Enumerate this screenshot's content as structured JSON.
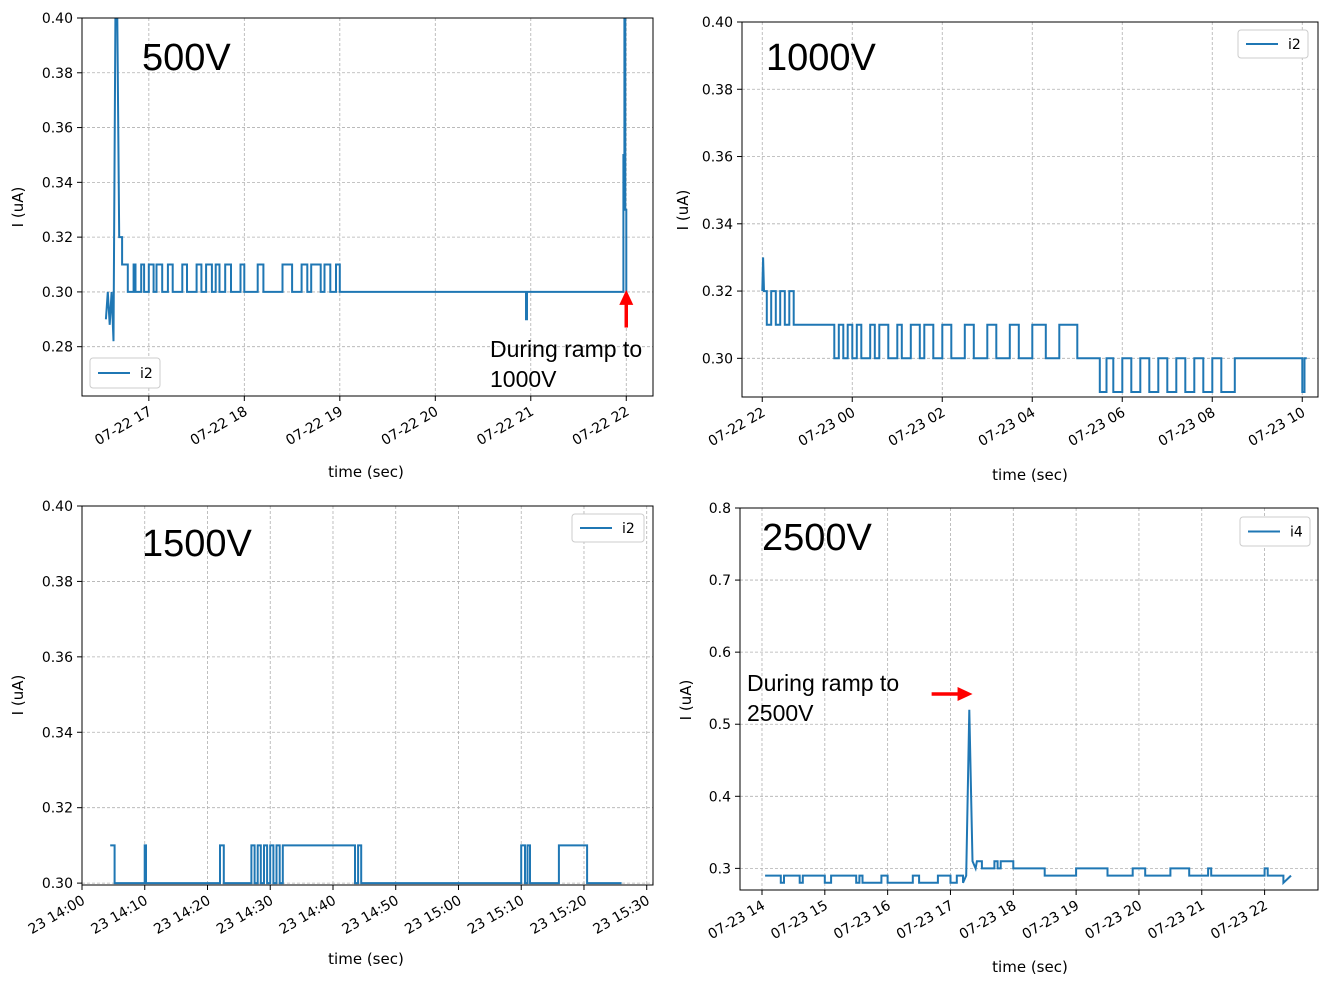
{
  "chart_data": [
    {
      "type": "line",
      "voltage_label": "500V",
      "xlabel": "time (sec)",
      "ylabel": "I (uA)",
      "x_unit": "hours",
      "xlim": [
        16.3,
        22.28
      ],
      "ylim": [
        0.262,
        0.4
      ],
      "xticks": [
        17,
        18,
        19,
        20,
        21,
        22
      ],
      "xtick_labels": [
        "07-22 17",
        "07-22 18",
        "07-22 19",
        "07-22 20",
        "07-22 21",
        "07-22 22"
      ],
      "yticks": [
        0.28,
        0.3,
        0.32,
        0.34,
        0.36,
        0.38,
        0.4
      ],
      "ytick_labels": [
        "0.28",
        "0.30",
        "0.32",
        "0.34",
        "0.36",
        "0.38",
        "0.40"
      ],
      "legend": {
        "position": "lower-left",
        "entries": [
          "i2"
        ]
      },
      "grid": true,
      "annotation": {
        "text_lines": [
          "During ramp to",
          "1000V"
        ],
        "arrow": "up",
        "arrow_tip": [
          22.0,
          0.3
        ],
        "arrow_tail": [
          22.0,
          0.287
        ]
      },
      "series": [
        {
          "name": "i2",
          "color": "#1f77b4",
          "x": [
            16.55,
            16.57,
            16.59,
            16.61,
            16.63,
            16.65,
            16.67,
            16.69,
            16.72,
            16.72,
            16.78,
            16.78,
            16.84,
            16.84,
            16.84,
            16.86,
            16.86,
            16.92,
            16.92,
            16.95,
            16.95,
            17.0,
            17.0,
            17.05,
            17.05,
            17.08,
            17.08,
            17.14,
            17.14,
            17.2,
            17.2,
            17.25,
            17.25,
            17.35,
            17.35,
            17.4,
            17.4,
            17.5,
            17.5,
            17.55,
            17.55,
            17.6,
            17.6,
            17.66,
            17.66,
            17.7,
            17.7,
            17.74,
            17.74,
            17.8,
            17.8,
            17.86,
            17.86,
            17.96,
            17.96,
            18.0,
            18.0,
            18.14,
            18.14,
            18.2,
            18.2,
            18.4,
            18.4,
            18.5,
            18.5,
            18.6,
            18.6,
            18.66,
            18.66,
            18.7,
            18.7,
            18.8,
            18.8,
            18.84,
            18.84,
            18.9,
            18.9,
            18.96,
            18.96,
            19.0,
            19.0,
            20.95,
            20.95,
            20.96,
            20.96,
            21.97,
            21.97,
            21.98,
            21.98,
            21.99,
            21.99,
            22.0,
            22.0,
            22.0,
            22.0
          ],
          "y": [
            0.29,
            0.3,
            0.288,
            0.3,
            0.282,
            0.4,
            0.4,
            0.32,
            0.32,
            0.31,
            0.31,
            0.3,
            0.3,
            0.31,
            0.31,
            0.31,
            0.3,
            0.3,
            0.31,
            0.31,
            0.3,
            0.3,
            0.31,
            0.31,
            0.3,
            0.3,
            0.31,
            0.31,
            0.3,
            0.3,
            0.31,
            0.31,
            0.3,
            0.3,
            0.31,
            0.31,
            0.3,
            0.3,
            0.31,
            0.31,
            0.3,
            0.3,
            0.31,
            0.31,
            0.3,
            0.3,
            0.31,
            0.31,
            0.3,
            0.3,
            0.31,
            0.31,
            0.3,
            0.3,
            0.31,
            0.31,
            0.3,
            0.3,
            0.31,
            0.31,
            0.3,
            0.3,
            0.31,
            0.31,
            0.3,
            0.3,
            0.31,
            0.31,
            0.3,
            0.3,
            0.31,
            0.31,
            0.3,
            0.3,
            0.31,
            0.31,
            0.3,
            0.3,
            0.31,
            0.31,
            0.3,
            0.3,
            0.29,
            0.29,
            0.3,
            0.3,
            0.35,
            0.35,
            0.4,
            0.4,
            0.33,
            0.33,
            0.3,
            0.3,
            0.3
          ]
        }
      ]
    },
    {
      "type": "line",
      "voltage_label": "1000V",
      "xlabel": "time (sec)",
      "ylabel": "I (uA)",
      "x_unit": "hours",
      "xlim": [
        21.55,
        34.35
      ],
      "ylim": [
        0.2885,
        0.4
      ],
      "xticks": [
        22,
        24,
        26,
        28,
        30,
        32,
        34
      ],
      "xtick_labels": [
        "07-22 22",
        "07-23 00",
        "07-23 02",
        "07-23 04",
        "07-23 06",
        "07-23 08",
        "07-23 10"
      ],
      "yticks": [
        0.3,
        0.32,
        0.34,
        0.36,
        0.38,
        0.4
      ],
      "ytick_labels": [
        "0.30",
        "0.32",
        "0.34",
        "0.36",
        "0.38",
        "0.40"
      ],
      "legend": {
        "position": "upper-right",
        "entries": [
          "i2"
        ]
      },
      "grid": true,
      "series": [
        {
          "name": "i2",
          "color": "#1f77b4",
          "x": [
            22.0,
            22.02,
            22.04,
            22.06,
            22.1,
            22.1,
            22.2,
            22.2,
            22.3,
            22.3,
            22.4,
            22.4,
            22.5,
            22.5,
            22.6,
            22.6,
            22.7,
            22.7,
            23.6,
            23.6,
            23.7,
            23.7,
            23.8,
            23.8,
            23.9,
            23.9,
            24.0,
            24.0,
            24.1,
            24.1,
            24.2,
            24.2,
            24.4,
            24.4,
            24.5,
            24.5,
            24.6,
            24.6,
            24.8,
            24.8,
            25.0,
            25.0,
            25.1,
            25.1,
            25.3,
            25.3,
            25.5,
            25.5,
            25.6,
            25.6,
            25.8,
            25.8,
            26.0,
            26.0,
            26.2,
            26.2,
            26.5,
            26.5,
            26.7,
            26.7,
            27.0,
            27.0,
            27.2,
            27.2,
            27.5,
            27.5,
            27.7,
            27.7,
            28.0,
            28.0,
            28.3,
            28.3,
            28.6,
            28.6,
            29.0,
            29.0,
            29.5,
            29.5,
            29.65,
            29.65,
            29.8,
            29.8,
            30.0,
            30.0,
            30.2,
            30.2,
            30.4,
            30.4,
            30.6,
            30.6,
            30.8,
            30.8,
            31.0,
            31.0,
            31.2,
            31.2,
            31.4,
            31.4,
            31.6,
            31.6,
            31.8,
            31.8,
            32.0,
            32.0,
            32.2,
            32.2,
            32.5,
            32.5,
            32.7,
            32.7,
            34.0,
            34.0,
            34.05,
            34.05,
            34.1
          ],
          "y": [
            0.32,
            0.33,
            0.32,
            0.32,
            0.32,
            0.31,
            0.31,
            0.32,
            0.32,
            0.31,
            0.31,
            0.32,
            0.32,
            0.31,
            0.31,
            0.32,
            0.32,
            0.31,
            0.31,
            0.3,
            0.3,
            0.31,
            0.31,
            0.3,
            0.3,
            0.31,
            0.31,
            0.3,
            0.3,
            0.31,
            0.31,
            0.3,
            0.3,
            0.31,
            0.31,
            0.3,
            0.3,
            0.31,
            0.31,
            0.3,
            0.3,
            0.31,
            0.31,
            0.3,
            0.3,
            0.31,
            0.31,
            0.3,
            0.3,
            0.31,
            0.31,
            0.3,
            0.3,
            0.31,
            0.31,
            0.3,
            0.3,
            0.31,
            0.31,
            0.3,
            0.3,
            0.31,
            0.31,
            0.3,
            0.3,
            0.31,
            0.31,
            0.3,
            0.3,
            0.31,
            0.31,
            0.3,
            0.3,
            0.31,
            0.31,
            0.3,
            0.3,
            0.29,
            0.29,
            0.3,
            0.3,
            0.29,
            0.29,
            0.3,
            0.3,
            0.29,
            0.29,
            0.3,
            0.3,
            0.29,
            0.29,
            0.3,
            0.3,
            0.29,
            0.29,
            0.3,
            0.3,
            0.29,
            0.29,
            0.3,
            0.3,
            0.29,
            0.29,
            0.3,
            0.3,
            0.29,
            0.29,
            0.3,
            0.3,
            0.3,
            0.3,
            0.29,
            0.29,
            0.3,
            0.3
          ]
        }
      ]
    },
    {
      "type": "line",
      "voltage_label": "1500V",
      "xlabel": "time (sec)",
      "ylabel": "I (uA)",
      "x_unit": "minutes after 23 14:00",
      "xlim": [
        0,
        91
      ],
      "ylim": [
        0.2995,
        0.4
      ],
      "xticks": [
        0,
        10,
        20,
        30,
        40,
        50,
        60,
        70,
        80,
        90
      ],
      "xtick_labels": [
        "23 14:00",
        "23 14:10",
        "23 14:20",
        "23 14:30",
        "23 14:40",
        "23 14:50",
        "23 15:00",
        "23 15:10",
        "23 15:20",
        "23 15:30"
      ],
      "yticks": [
        0.3,
        0.32,
        0.34,
        0.36,
        0.38,
        0.4
      ],
      "ytick_labels": [
        "0.30",
        "0.32",
        "0.34",
        "0.36",
        "0.38",
        "0.40"
      ],
      "legend": {
        "position": "upper-right",
        "entries": [
          "i2"
        ]
      },
      "grid": true,
      "series": [
        {
          "name": "i2",
          "color": "#1f77b4",
          "x": [
            4.5,
            5.2,
            5.2,
            10,
            10,
            10.2,
            10.2,
            22,
            22,
            22.6,
            22.6,
            27,
            27,
            27.5,
            27.5,
            28,
            28,
            28.5,
            28.5,
            29,
            29,
            29.5,
            29.5,
            30,
            30,
            30.5,
            30.5,
            31,
            31,
            31.5,
            31.5,
            32,
            32,
            43.5,
            43.5,
            44,
            44,
            44.5,
            44.5,
            70,
            70,
            70.6,
            70.6,
            71,
            71,
            71.4,
            71.4,
            76,
            76,
            80.5,
            80.5,
            86
          ],
          "y": [
            0.31,
            0.31,
            0.3,
            0.3,
            0.31,
            0.31,
            0.3,
            0.3,
            0.31,
            0.31,
            0.3,
            0.3,
            0.31,
            0.31,
            0.3,
            0.3,
            0.31,
            0.31,
            0.3,
            0.3,
            0.31,
            0.31,
            0.3,
            0.3,
            0.31,
            0.31,
            0.3,
            0.3,
            0.31,
            0.31,
            0.3,
            0.3,
            0.31,
            0.31,
            0.3,
            0.3,
            0.31,
            0.31,
            0.3,
            0.3,
            0.31,
            0.31,
            0.3,
            0.3,
            0.31,
            0.31,
            0.3,
            0.3,
            0.31,
            0.31,
            0.3,
            0.3
          ]
        }
      ]
    },
    {
      "type": "line",
      "voltage_label": "2500V",
      "xlabel": "time (sec)",
      "ylabel": "I (uA)",
      "x_unit": "hours",
      "xlim": [
        13.65,
        22.85
      ],
      "ylim": [
        0.27,
        0.8
      ],
      "xticks": [
        14,
        15,
        16,
        17,
        18,
        19,
        20,
        21,
        22
      ],
      "xtick_labels": [
        "07-23 14",
        "07-23 15",
        "07-23 16",
        "07-23 17",
        "07-23 18",
        "07-23 19",
        "07-23 20",
        "07-23 21",
        "07-23 22"
      ],
      "yticks": [
        0.3,
        0.4,
        0.5,
        0.6,
        0.7,
        0.8
      ],
      "ytick_labels": [
        "0.3",
        "0.4",
        "0.5",
        "0.6",
        "0.7",
        "0.8"
      ],
      "legend": {
        "position": "upper-right",
        "entries": [
          "i4"
        ]
      },
      "grid": true,
      "annotation": {
        "text_lines": [
          "During ramp to",
          "2500V"
        ],
        "arrow": "right",
        "arrow_tip": [
          17.32,
          0.542
        ],
        "arrow_tail": [
          16.7,
          0.542
        ]
      },
      "series": [
        {
          "name": "i4",
          "color": "#1f77b4",
          "x": [
            14.05,
            14.3,
            14.3,
            14.35,
            14.35,
            14.6,
            14.6,
            14.65,
            14.65,
            15.0,
            15.0,
            15.1,
            15.1,
            15.5,
            15.5,
            15.55,
            15.55,
            15.6,
            15.6,
            15.9,
            15.9,
            16.0,
            16.0,
            16.4,
            16.4,
            16.5,
            16.5,
            16.8,
            16.8,
            17.0,
            17.0,
            17.1,
            17.1,
            17.2,
            17.2,
            17.25,
            17.3,
            17.35,
            17.4,
            17.42,
            17.45,
            17.5,
            17.5,
            17.7,
            17.7,
            17.75,
            17.75,
            17.8,
            17.8,
            18.0,
            18.0,
            18.5,
            18.5,
            19.0,
            19.0,
            19.5,
            19.5,
            19.9,
            19.9,
            20.1,
            20.1,
            20.5,
            20.5,
            20.8,
            20.8,
            21.1,
            21.1,
            21.15,
            21.15,
            22.0,
            22.0,
            22.05,
            22.05,
            22.3,
            22.3,
            22.42
          ],
          "y": [
            0.29,
            0.29,
            0.28,
            0.28,
            0.29,
            0.29,
            0.28,
            0.28,
            0.29,
            0.29,
            0.28,
            0.28,
            0.29,
            0.29,
            0.28,
            0.28,
            0.29,
            0.29,
            0.28,
            0.28,
            0.29,
            0.29,
            0.28,
            0.28,
            0.29,
            0.29,
            0.28,
            0.28,
            0.29,
            0.29,
            0.28,
            0.28,
            0.29,
            0.29,
            0.28,
            0.29,
            0.52,
            0.31,
            0.3,
            0.31,
            0.31,
            0.31,
            0.3,
            0.3,
            0.31,
            0.31,
            0.3,
            0.3,
            0.31,
            0.31,
            0.3,
            0.3,
            0.29,
            0.29,
            0.3,
            0.3,
            0.29,
            0.29,
            0.3,
            0.3,
            0.29,
            0.29,
            0.3,
            0.3,
            0.29,
            0.29,
            0.3,
            0.3,
            0.29,
            0.29,
            0.3,
            0.3,
            0.29,
            0.29,
            0.28,
            0.29
          ]
        }
      ]
    }
  ]
}
